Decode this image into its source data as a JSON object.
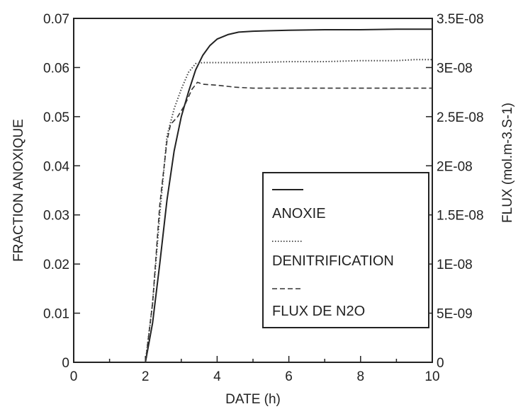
{
  "chart_data": {
    "type": "line",
    "xlabel": "DATE (h)",
    "ylabel_left": "FRACTION ANOXIQUE",
    "ylabel_right": "FLUX (mol.m-3.S-1)",
    "xlim": [
      0,
      10
    ],
    "ylim_left": [
      0,
      0.07
    ],
    "ylim_right": [
      0,
      3.5e-08
    ],
    "x_ticks": [
      0,
      2,
      4,
      6,
      8,
      10
    ],
    "x_tick_labels": [
      "0",
      "2",
      "4",
      "6",
      "8",
      "10"
    ],
    "y_left_ticks": [
      0,
      0.01,
      0.02,
      0.03,
      0.04,
      0.05,
      0.06,
      0.07
    ],
    "y_left_tick_labels": [
      "0",
      "0.01",
      "0.02",
      "0.03",
      "0.04",
      "0.05",
      "0.06",
      "0.07"
    ],
    "y_right_ticks": [
      0,
      5e-09,
      1e-08,
      1.5e-08,
      2e-08,
      2.5e-08,
      3e-08,
      3.5e-08
    ],
    "y_right_tick_labels": [
      "0",
      "5E-09",
      "1E-08",
      "1.5E-08",
      "2E-08",
      "2.5E-08",
      "3E-08",
      "3.5E-08"
    ],
    "grid": false,
    "legend_position": "center-right",
    "series": [
      {
        "name": "ANOXIE",
        "axis": "left",
        "style": "solid",
        "x": [
          2.0,
          2.2,
          2.4,
          2.6,
          2.8,
          3.0,
          3.2,
          3.4,
          3.6,
          3.8,
          4.0,
          4.3,
          4.6,
          5.0,
          5.5,
          6.0,
          7.0,
          8.0,
          9.0,
          10.0
        ],
        "y": [
          0.0,
          0.008,
          0.02,
          0.033,
          0.043,
          0.05,
          0.055,
          0.0595,
          0.0625,
          0.0645,
          0.0658,
          0.0667,
          0.0672,
          0.0674,
          0.0675,
          0.0676,
          0.0677,
          0.0677,
          0.0678,
          0.0678
        ]
      },
      {
        "name": "DENITRIFICATION",
        "axis": "right",
        "style": "dotted",
        "x": [
          2.0,
          2.2,
          2.4,
          2.6,
          2.8,
          3.0,
          3.2,
          3.4,
          3.6,
          4.0,
          5.0,
          6.0,
          7.0,
          8.0,
          9.0,
          9.5,
          10.0
        ],
        "y": [
          0.0,
          6e-09,
          1.5e-08,
          2.3e-08,
          2.58e-08,
          2.78e-08,
          2.95e-08,
          3.04e-08,
          3.05e-08,
          3.05e-08,
          3.05e-08,
          3.06e-08,
          3.06e-08,
          3.07e-08,
          3.07e-08,
          3.08e-08,
          3.08e-08
        ]
      },
      {
        "name": "FLUX DE N2O",
        "axis": "right",
        "style": "dashed",
        "x": [
          2.0,
          2.2,
          2.4,
          2.6,
          2.7,
          2.9,
          3.1,
          3.3,
          3.45,
          3.6,
          4.0,
          4.5,
          5.0,
          5.5,
          6.0,
          7.0,
          8.0,
          9.0,
          10.0
        ],
        "y": [
          0.0,
          6e-09,
          1.6e-08,
          2.25e-08,
          2.42e-08,
          2.5e-08,
          2.62e-08,
          2.78e-08,
          2.85e-08,
          2.83e-08,
          2.82e-08,
          2.8e-08,
          2.79e-08,
          2.79e-08,
          2.79e-08,
          2.79e-08,
          2.79e-08,
          2.79e-08,
          2.79e-08
        ]
      }
    ]
  }
}
